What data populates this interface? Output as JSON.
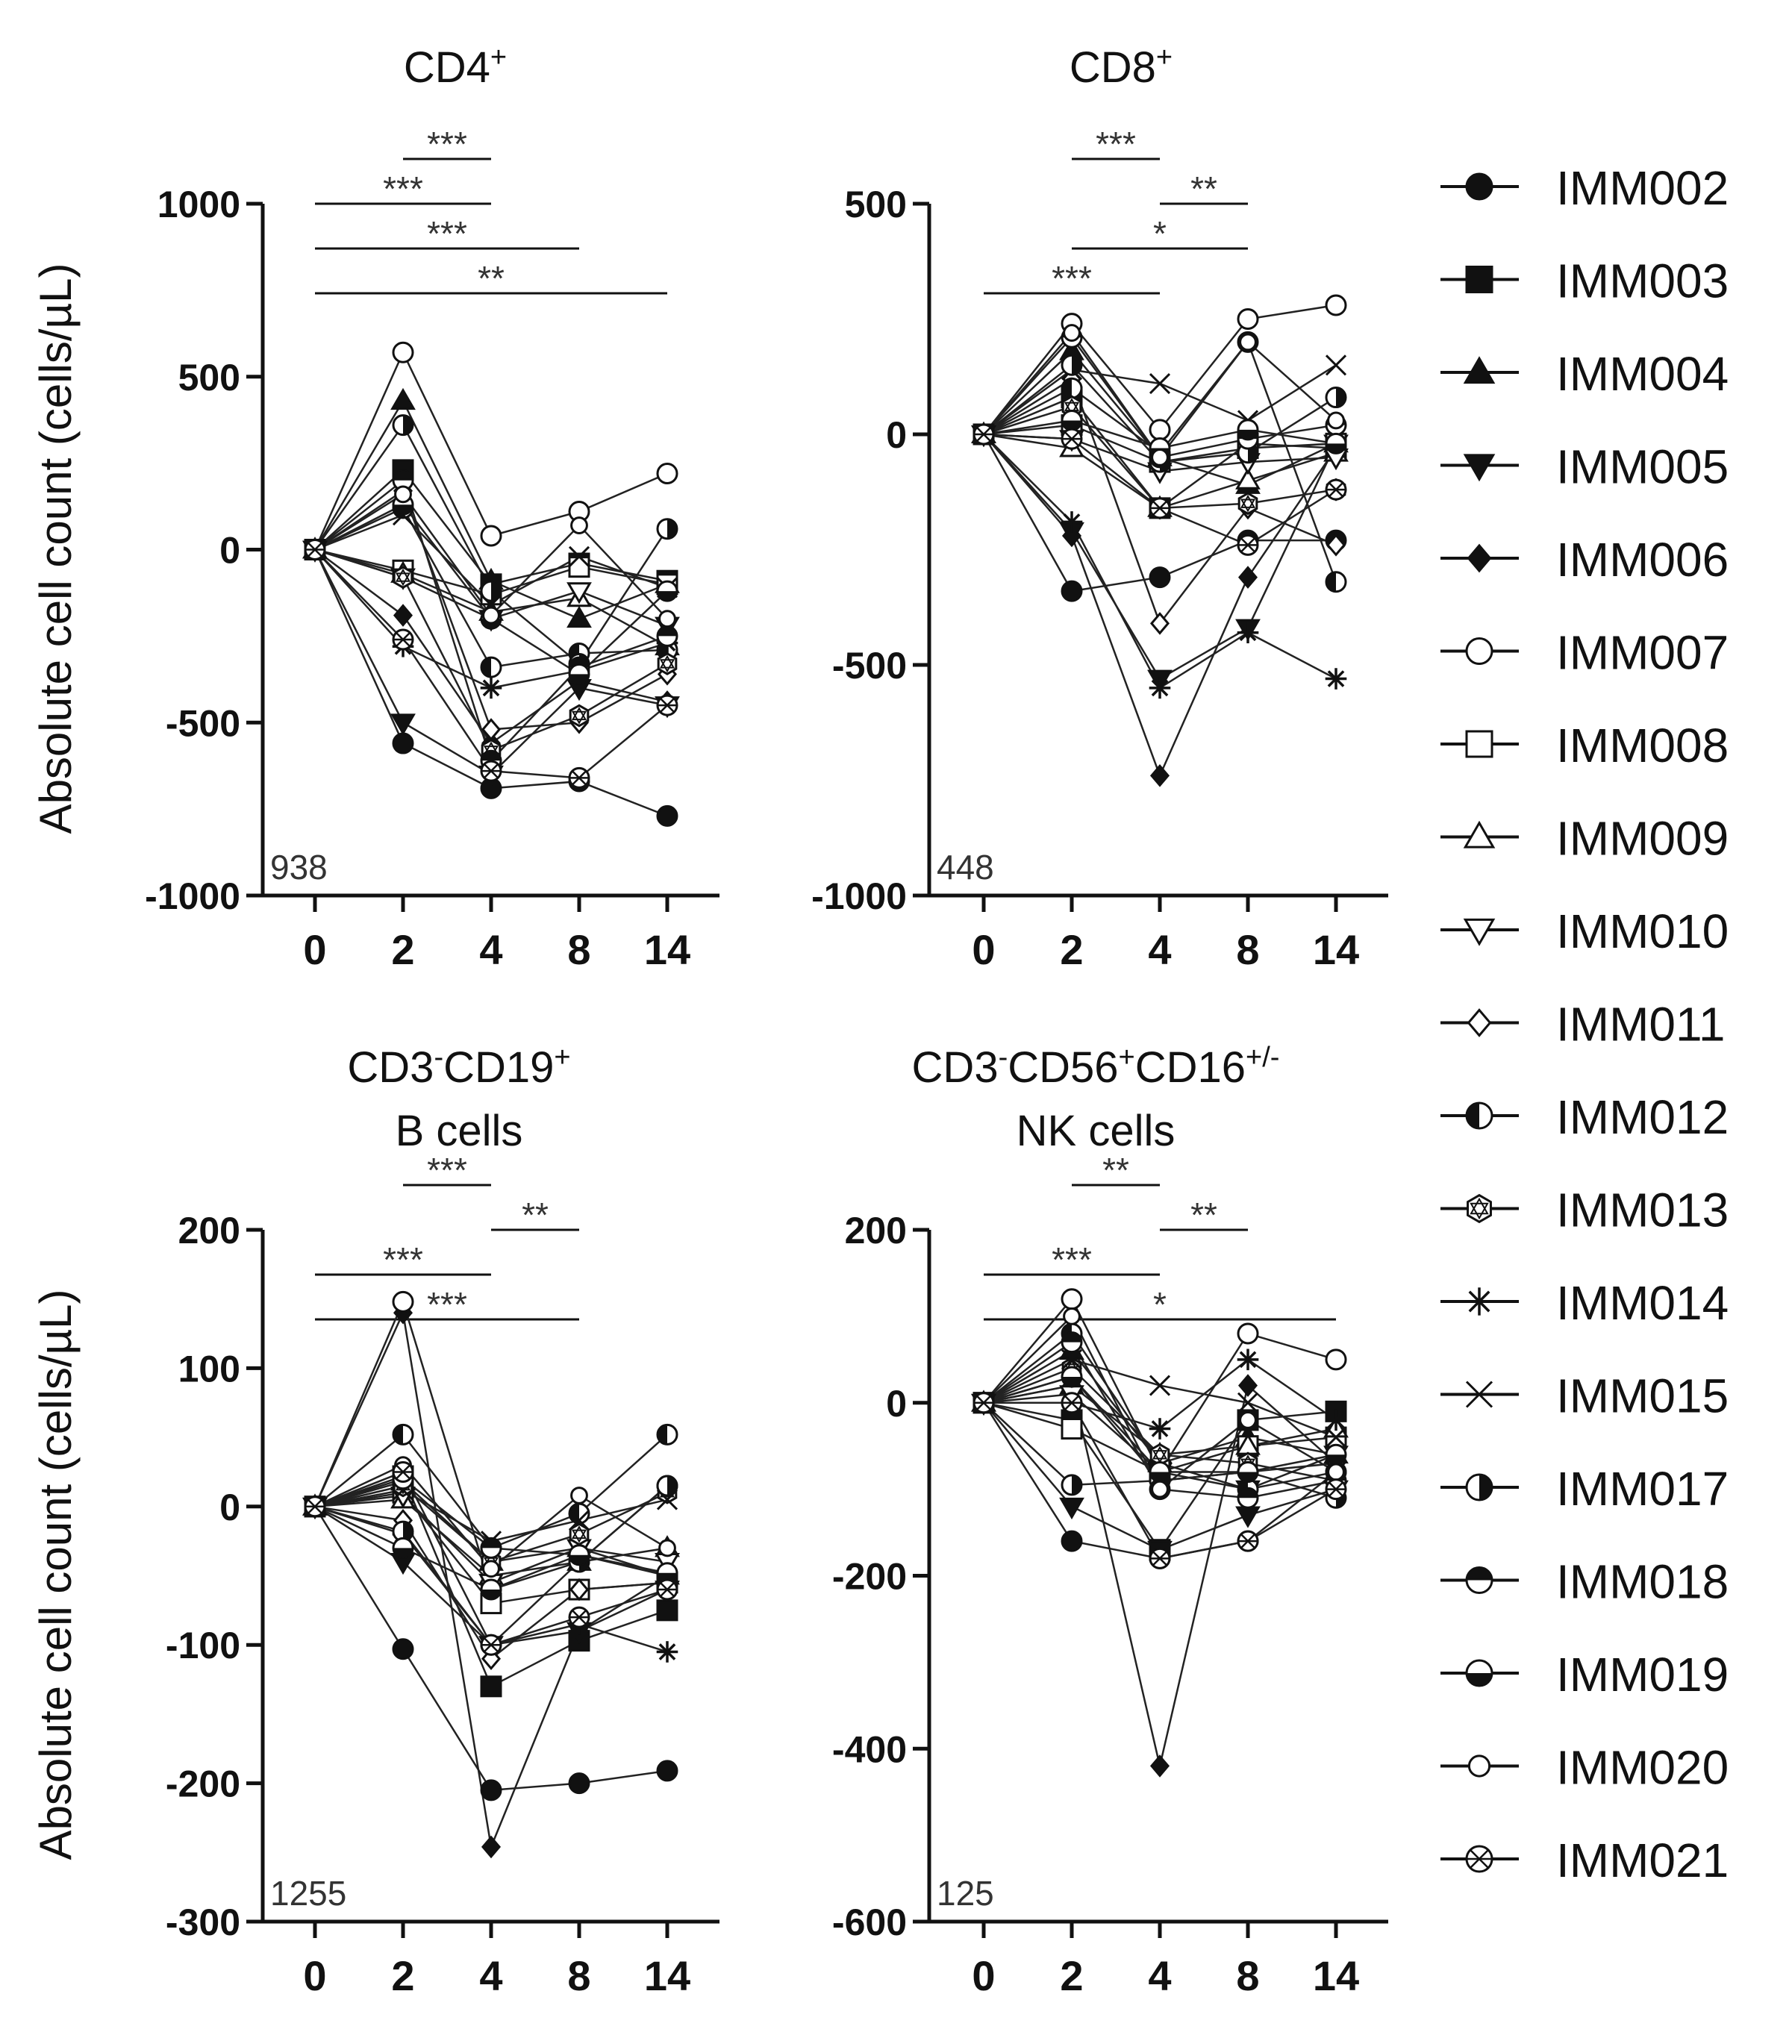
{
  "x_ticks": [
    0,
    2,
    4,
    8,
    14
  ],
  "subjects": [
    {
      "name": "IMM002",
      "marker": "circle-filled"
    },
    {
      "name": "IMM003",
      "marker": "square-filled"
    },
    {
      "name": "IMM004",
      "marker": "triangle-up-filled"
    },
    {
      "name": "IMM005",
      "marker": "triangle-down-filled"
    },
    {
      "name": "IMM006",
      "marker": "diamond-filled"
    },
    {
      "name": "IMM007",
      "marker": "circle-open"
    },
    {
      "name": "IMM008",
      "marker": "square-open"
    },
    {
      "name": "IMM009",
      "marker": "triangle-up-open"
    },
    {
      "name": "IMM010",
      "marker": "triangle-down-open"
    },
    {
      "name": "IMM011",
      "marker": "diamond-open"
    },
    {
      "name": "IMM012",
      "marker": "circle-half-left"
    },
    {
      "name": "IMM013",
      "marker": "hexagon-star"
    },
    {
      "name": "IMM014",
      "marker": "asterisk"
    },
    {
      "name": "IMM015",
      "marker": "cross"
    },
    {
      "name": "IMM017",
      "marker": "circle-half-right"
    },
    {
      "name": "IMM018",
      "marker": "circle-half-top"
    },
    {
      "name": "IMM019",
      "marker": "circle-half-bottom"
    },
    {
      "name": "IMM020",
      "marker": "circle-open-small"
    },
    {
      "name": "IMM021",
      "marker": "circle-cross"
    }
  ],
  "chart_data": [
    {
      "type": "line",
      "title_main": "CD4",
      "title_sup": "+",
      "title_line2": "",
      "ylabel": "Absolute cell count (cells/µL)",
      "ylim": [
        -1000,
        1000
      ],
      "yticks": [
        -1000,
        -500,
        0,
        500,
        1000
      ],
      "note": "938",
      "significance": [
        {
          "from": 2,
          "to": 4,
          "label": "***"
        },
        {
          "from": 0,
          "to": 4,
          "label": "***"
        },
        {
          "from": 0,
          "to": 8,
          "label": "***"
        },
        {
          "from": 0,
          "to": 14,
          "label": "**"
        }
      ],
      "series": [
        {
          "name": "IMM002",
          "values": [
            0,
            -560,
            -690,
            -670,
            -770
          ]
        },
        {
          "name": "IMM003",
          "values": [
            0,
            230,
            -100,
            -40,
            -90
          ]
        },
        {
          "name": "IMM004",
          "values": [
            0,
            430,
            -90,
            -200,
            -100
          ]
        },
        {
          "name": "IMM005",
          "values": [
            0,
            -500,
            -650,
            -400,
            -450
          ]
        },
        {
          "name": "IMM006",
          "values": [
            0,
            -190,
            -560,
            -380,
            -440
          ]
        },
        {
          "name": "IMM007",
          "values": [
            0,
            570,
            40,
            110,
            220
          ]
        },
        {
          "name": "IMM008",
          "values": [
            0,
            -60,
            -130,
            -50,
            -100
          ]
        },
        {
          "name": "IMM009",
          "values": [
            0,
            -70,
            -180,
            -140,
            -280
          ]
        },
        {
          "name": "IMM010",
          "values": [
            0,
            -80,
            -200,
            -120,
            -220
          ]
        },
        {
          "name": "IMM011",
          "values": [
            0,
            170,
            -520,
            -500,
            -360
          ]
        },
        {
          "name": "IMM012",
          "values": [
            0,
            120,
            -340,
            -300,
            -290
          ]
        },
        {
          "name": "IMM013",
          "values": [
            0,
            -80,
            -580,
            -480,
            -330
          ]
        },
        {
          "name": "IMM014",
          "values": [
            0,
            -280,
            -400,
            -350,
            -270
          ]
        },
        {
          "name": "IMM015",
          "values": [
            0,
            100,
            -160,
            -20,
            -110
          ]
        },
        {
          "name": "IMM017",
          "values": [
            0,
            360,
            -120,
            -330,
            60
          ]
        },
        {
          "name": "IMM018",
          "values": [
            0,
            200,
            -610,
            -340,
            -250
          ]
        },
        {
          "name": "IMM019",
          "values": [
            0,
            130,
            -200,
            -360,
            -120
          ]
        },
        {
          "name": "IMM020",
          "values": [
            0,
            160,
            -190,
            70,
            -200
          ]
        },
        {
          "name": "IMM021",
          "values": [
            0,
            -260,
            -640,
            -660,
            -450
          ]
        }
      ]
    },
    {
      "type": "line",
      "title_main": "CD8",
      "title_sup": "+",
      "title_line2": "",
      "ylabel": "",
      "ylim": [
        -1000,
        500
      ],
      "yticks": [
        -1000,
        -500,
        0,
        500
      ],
      "note": "448",
      "significance": [
        {
          "from": 2,
          "to": 4,
          "label": "***"
        },
        {
          "from": 4,
          "to": 8,
          "label": "**"
        },
        {
          "from": 2,
          "to": 8,
          "label": "*"
        },
        {
          "from": 0,
          "to": 4,
          "label": "***"
        }
      ],
      "series": [
        {
          "name": "IMM002",
          "values": [
            0,
            -340,
            -310,
            -230,
            -230
          ]
        },
        {
          "name": "IMM003",
          "values": [
            0,
            80,
            -160,
            -20,
            -30
          ]
        },
        {
          "name": "IMM004",
          "values": [
            0,
            180,
            -50,
            -110,
            -20
          ]
        },
        {
          "name": "IMM005",
          "values": [
            0,
            -210,
            -530,
            -420,
            -20
          ]
        },
        {
          "name": "IMM006",
          "values": [
            0,
            -220,
            -740,
            -310,
            -30
          ]
        },
        {
          "name": "IMM007",
          "values": [
            0,
            240,
            10,
            250,
            280
          ]
        },
        {
          "name": "IMM008",
          "values": [
            0,
            20,
            -60,
            -30,
            -20
          ]
        },
        {
          "name": "IMM009",
          "values": [
            0,
            -30,
            -160,
            -100,
            -40
          ]
        },
        {
          "name": "IMM010",
          "values": [
            0,
            -10,
            -80,
            -60,
            -50
          ]
        },
        {
          "name": "IMM011",
          "values": [
            0,
            120,
            -410,
            -160,
            -240
          ]
        },
        {
          "name": "IMM012",
          "values": [
            0,
            100,
            -40,
            200,
            -320
          ]
        },
        {
          "name": "IMM013",
          "values": [
            0,
            60,
            -160,
            -150,
            -120
          ]
        },
        {
          "name": "IMM014",
          "values": [
            0,
            -190,
            -550,
            -430,
            -530
          ]
        },
        {
          "name": "IMM015",
          "values": [
            0,
            140,
            110,
            30,
            150
          ]
        },
        {
          "name": "IMM017",
          "values": [
            0,
            150,
            -60,
            -40,
            80
          ]
        },
        {
          "name": "IMM018",
          "values": [
            0,
            210,
            -50,
            -10,
            20
          ]
        },
        {
          "name": "IMM019",
          "values": [
            0,
            30,
            -30,
            10,
            -20
          ]
        },
        {
          "name": "IMM020",
          "values": [
            0,
            220,
            -50,
            200,
            30
          ]
        },
        {
          "name": "IMM021",
          "values": [
            0,
            -10,
            -160,
            -240,
            -120
          ]
        }
      ]
    },
    {
      "type": "line",
      "title_main": "CD3",
      "title_sup": "-",
      "title_main2": "CD19",
      "title_sup2": "+",
      "title_main3": "",
      "title_sup3": "",
      "title_line2": "B cells",
      "ylabel": "Absolute cell count (cells/µL)",
      "ylim": [
        -300,
        200
      ],
      "yticks": [
        -300,
        -200,
        -100,
        0,
        100,
        200
      ],
      "note": "1255",
      "significance": [
        {
          "from": 2,
          "to": 4,
          "label": "***"
        },
        {
          "from": 4,
          "to": 8,
          "label": "**"
        },
        {
          "from": 0,
          "to": 4,
          "label": "***"
        },
        {
          "from": 0,
          "to": 8,
          "label": "***"
        }
      ],
      "series": [
        {
          "name": "IMM002",
          "values": [
            0,
            -103,
            -205,
            -200,
            -191
          ]
        },
        {
          "name": "IMM003",
          "values": [
            0,
            22,
            -130,
            -97,
            -75
          ]
        },
        {
          "name": "IMM004",
          "values": [
            0,
            18,
            -40,
            -30,
            -50
          ]
        },
        {
          "name": "IMM005",
          "values": [
            0,
            -40,
            -100,
            -90,
            -60
          ]
        },
        {
          "name": "IMM006",
          "values": [
            0,
            140,
            -246,
            -90,
            -50
          ]
        },
        {
          "name": "IMM007",
          "values": [
            0,
            148,
            -60,
            -40,
            15
          ]
        },
        {
          "name": "IMM008",
          "values": [
            0,
            10,
            -70,
            -60,
            -55
          ]
        },
        {
          "name": "IMM009",
          "values": [
            0,
            5,
            -50,
            -40,
            -30
          ]
        },
        {
          "name": "IMM010",
          "values": [
            0,
            8,
            -55,
            -30,
            -40
          ]
        },
        {
          "name": "IMM011",
          "values": [
            0,
            -10,
            -110,
            -60,
            -55
          ]
        },
        {
          "name": "IMM012",
          "values": [
            0,
            52,
            -30,
            -5,
            52
          ]
        },
        {
          "name": "IMM013",
          "values": [
            0,
            15,
            -40,
            -20,
            10
          ]
        },
        {
          "name": "IMM014",
          "values": [
            0,
            -20,
            -100,
            -85,
            -105
          ]
        },
        {
          "name": "IMM015",
          "values": [
            0,
            12,
            -25,
            -10,
            5
          ]
        },
        {
          "name": "IMM017",
          "values": [
            0,
            -18,
            -100,
            -40,
            15
          ]
        },
        {
          "name": "IMM018",
          "values": [
            0,
            20,
            -30,
            -35,
            -50
          ]
        },
        {
          "name": "IMM019",
          "values": [
            0,
            -30,
            -60,
            -35,
            -48
          ]
        },
        {
          "name": "IMM020",
          "values": [
            0,
            30,
            -45,
            8,
            -30
          ]
        },
        {
          "name": "IMM021",
          "values": [
            0,
            25,
            -100,
            -80,
            -60
          ]
        }
      ]
    },
    {
      "type": "line",
      "title_main": "CD3",
      "title_sup": "-",
      "title_main2": "CD56",
      "title_sup2": "+",
      "title_main3": "CD16",
      "title_sup3": "+/-",
      "title_line2": "NK cells",
      "ylabel": "",
      "ylim": [
        -600,
        200
      ],
      "yticks": [
        -600,
        -400,
        -200,
        0,
        200
      ],
      "note": "125",
      "significance": [
        {
          "from": 2,
          "to": 4,
          "label": "**"
        },
        {
          "from": 4,
          "to": 8,
          "label": "**"
        },
        {
          "from": 0,
          "to": 4,
          "label": "***"
        },
        {
          "from": 0,
          "to": 14,
          "label": "*"
        }
      ],
      "series": [
        {
          "name": "IMM002",
          "values": [
            0,
            -160,
            -180,
            -160,
            -80
          ]
        },
        {
          "name": "IMM003",
          "values": [
            0,
            -20,
            -170,
            -20,
            -10
          ]
        },
        {
          "name": "IMM004",
          "values": [
            0,
            60,
            -70,
            -40,
            -60
          ]
        },
        {
          "name": "IMM005",
          "values": [
            0,
            -120,
            -170,
            -130,
            -100
          ]
        },
        {
          "name": "IMM006",
          "values": [
            0,
            20,
            -420,
            20,
            -70
          ]
        },
        {
          "name": "IMM007",
          "values": [
            0,
            120,
            -80,
            80,
            50
          ]
        },
        {
          "name": "IMM008",
          "values": [
            0,
            -30,
            -80,
            -50,
            -40
          ]
        },
        {
          "name": "IMM009",
          "values": [
            0,
            20,
            -60,
            -50,
            -30
          ]
        },
        {
          "name": "IMM010",
          "values": [
            0,
            10,
            -80,
            -100,
            -60
          ]
        },
        {
          "name": "IMM011",
          "values": [
            0,
            30,
            -90,
            -80,
            -70
          ]
        },
        {
          "name": "IMM012",
          "values": [
            0,
            80,
            -70,
            -100,
            -80
          ]
        },
        {
          "name": "IMM013",
          "values": [
            0,
            40,
            -60,
            -70,
            -90
          ]
        },
        {
          "name": "IMM014",
          "values": [
            0,
            0,
            -30,
            50,
            -20
          ]
        },
        {
          "name": "IMM015",
          "values": [
            0,
            50,
            20,
            0,
            -40
          ]
        },
        {
          "name": "IMM017",
          "values": [
            0,
            -95,
            -90,
            -80,
            -110
          ]
        },
        {
          "name": "IMM018",
          "values": [
            0,
            70,
            -100,
            -110,
            -90
          ]
        },
        {
          "name": "IMM019",
          "values": [
            0,
            30,
            -80,
            -80,
            -60
          ]
        },
        {
          "name": "IMM020",
          "values": [
            0,
            100,
            -100,
            -20,
            -80
          ]
        },
        {
          "name": "IMM021",
          "values": [
            0,
            0,
            -180,
            -160,
            -100
          ]
        }
      ]
    }
  ]
}
